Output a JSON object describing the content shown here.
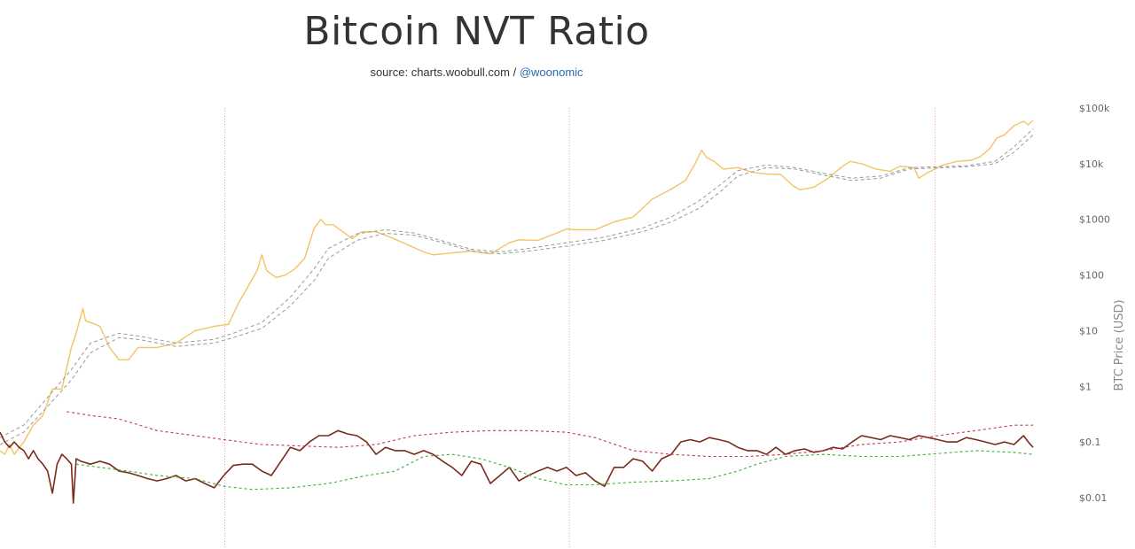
{
  "title": "Bitcoin NVT Ratio",
  "source": {
    "prefix": "source: charts.woobull.com / ",
    "handle": "@woonomic"
  },
  "colors": {
    "price": "#f2c464",
    "price_ma_1": "#999999",
    "price_ma_2": "#999999",
    "nvt": "#7a2a1a",
    "upper_band": "#c7374e",
    "lower_band": "#3cae3c",
    "halving_line": "#e58a8a"
  },
  "chart_data": {
    "type": "line",
    "title": "Bitcoin NVT Ratio",
    "ylabel": "BTC Price (USD)",
    "y_scale": "log",
    "y_ticks": [
      {
        "value": 100000,
        "label": "$100k"
      },
      {
        "value": 10000,
        "label": "$10k"
      },
      {
        "value": 1000,
        "label": "$1000"
      },
      {
        "value": 100,
        "label": "$100"
      },
      {
        "value": 10,
        "label": "$10"
      },
      {
        "value": 1,
        "label": "$1"
      },
      {
        "value": 0.1,
        "label": "$0.1"
      },
      {
        "value": 0.01,
        "label": "$0.01"
      }
    ],
    "ylim": [
      0.005,
      100000
    ],
    "xlim": [
      2010.55,
      2021.4
    ],
    "halvings": [
      2012.91,
      2016.53,
      2020.37
    ],
    "series": [
      {
        "key": "price",
        "x": [
          2010.55,
          2010.6,
          2010.65,
          2010.7,
          2010.8,
          2010.9,
          2011.0,
          2011.1,
          2011.2,
          2011.3,
          2011.35,
          2011.42,
          2011.45,
          2011.5,
          2011.6,
          2011.7,
          2011.8,
          2011.9,
          2012.0,
          2012.2,
          2012.4,
          2012.6,
          2012.8,
          2012.95,
          2013.05,
          2013.15,
          2013.25,
          2013.3,
          2013.35,
          2013.45,
          2013.55,
          2013.65,
          2013.75,
          2013.85,
          2013.92,
          2013.97,
          2014.05,
          2014.15,
          2014.25,
          2014.35,
          2014.5,
          2014.65,
          2014.8,
          2015.0,
          2015.1,
          2015.3,
          2015.5,
          2015.7,
          2015.9,
          2016.0,
          2016.2,
          2016.4,
          2016.5,
          2016.6,
          2016.8,
          2017.0,
          2017.2,
          2017.4,
          2017.6,
          2017.75,
          2017.85,
          2017.92,
          2017.97,
          2018.05,
          2018.15,
          2018.3,
          2018.45,
          2018.6,
          2018.75,
          2018.88,
          2018.95,
          2019.1,
          2019.25,
          2019.4,
          2019.48,
          2019.6,
          2019.75,
          2019.9,
          2020.0,
          2020.15,
          2020.2,
          2020.3,
          2020.45,
          2020.6,
          2020.75,
          2020.85,
          2020.95,
          2021.02,
          2021.1,
          2021.2,
          2021.3,
          2021.35,
          2021.4
        ],
        "values": [
          0.07,
          0.06,
          0.09,
          0.06,
          0.1,
          0.2,
          0.3,
          0.9,
          0.9,
          5,
          9,
          25,
          15,
          14,
          12,
          5,
          3,
          3,
          5,
          5,
          6,
          10,
          12,
          13,
          30,
          60,
          120,
          230,
          120,
          90,
          100,
          130,
          200,
          700,
          1000,
          800,
          800,
          600,
          450,
          600,
          600,
          480,
          370,
          260,
          230,
          250,
          270,
          240,
          380,
          430,
          420,
          570,
          670,
          650,
          650,
          900,
          1100,
          2300,
          3500,
          5000,
          10000,
          17500,
          13000,
          11000,
          8000,
          8500,
          7000,
          6500,
          6400,
          4000,
          3400,
          3800,
          5500,
          9000,
          11000,
          10000,
          8000,
          7300,
          9000,
          8500,
          5500,
          7000,
          9400,
          11000,
          11500,
          13500,
          19000,
          29000,
          33000,
          48000,
          58000,
          50000,
          60000
        ]
      },
      {
        "key": "price_ma_1",
        "x": [
          2010.55,
          2010.8,
          2011.0,
          2011.3,
          2011.5,
          2011.8,
          2012.0,
          2012.4,
          2012.8,
          2013.0,
          2013.3,
          2013.6,
          2013.85,
          2014.0,
          2014.3,
          2014.6,
          2014.9,
          2015.2,
          2015.5,
          2015.8,
          2016.1,
          2016.5,
          2016.9,
          2017.3,
          2017.6,
          2017.9,
          2018.1,
          2018.3,
          2018.6,
          2018.9,
          2019.2,
          2019.5,
          2019.8,
          2020.1,
          2020.4,
          2020.7,
          2021.0,
          2021.2,
          2021.4
        ],
        "values": [
          0.12,
          0.2,
          0.5,
          2,
          6,
          9,
          8,
          6,
          7,
          9,
          14,
          40,
          130,
          300,
          550,
          650,
          570,
          410,
          290,
          260,
          300,
          380,
          480,
          700,
          1100,
          2200,
          4000,
          7500,
          9500,
          8500,
          6700,
          5500,
          6000,
          8500,
          8800,
          9200,
          11000,
          20000,
          42000
        ]
      },
      {
        "key": "price_ma_2",
        "x": [
          2010.55,
          2010.8,
          2011.0,
          2011.3,
          2011.5,
          2011.8,
          2012.0,
          2012.4,
          2012.8,
          2013.0,
          2013.3,
          2013.6,
          2013.85,
          2014.0,
          2014.3,
          2014.6,
          2014.9,
          2015.2,
          2015.5,
          2015.8,
          2016.1,
          2016.5,
          2016.9,
          2017.3,
          2017.6,
          2017.9,
          2018.1,
          2018.3,
          2018.6,
          2018.9,
          2019.2,
          2019.5,
          2019.8,
          2020.1,
          2020.4,
          2020.7,
          2021.0,
          2021.2,
          2021.4
        ],
        "values": [
          0.09,
          0.15,
          0.35,
          1.3,
          4,
          7.5,
          7,
          5.2,
          6,
          7.5,
          11,
          28,
          80,
          200,
          420,
          560,
          520,
          380,
          270,
          240,
          270,
          330,
          420,
          600,
          900,
          1600,
          3000,
          6000,
          8500,
          8000,
          6200,
          5000,
          5500,
          8000,
          8400,
          8800,
          10000,
          16000,
          33000
        ]
      },
      {
        "key": "nvt",
        "x": [
          2010.55,
          2010.6,
          2010.65,
          2010.7,
          2010.75,
          2010.8,
          2010.85,
          2010.9,
          2010.95,
          2011.0,
          2011.05,
          2011.1,
          2011.15,
          2011.2,
          2011.25,
          2011.3,
          2011.32,
          2011.35,
          2011.4,
          2011.5,
          2011.6,
          2011.7,
          2011.8,
          2011.9,
          2012.0,
          2012.1,
          2012.2,
          2012.3,
          2012.4,
          2012.5,
          2012.6,
          2012.7,
          2012.8,
          2012.9,
          2013.0,
          2013.1,
          2013.2,
          2013.3,
          2013.4,
          2013.5,
          2013.6,
          2013.7,
          2013.8,
          2013.9,
          2014.0,
          2014.1,
          2014.2,
          2014.3,
          2014.4,
          2014.5,
          2014.6,
          2014.7,
          2014.8,
          2014.9,
          2015.0,
          2015.1,
          2015.2,
          2015.3,
          2015.4,
          2015.5,
          2015.6,
          2015.7,
          2015.8,
          2015.9,
          2016.0,
          2016.1,
          2016.2,
          2016.3,
          2016.4,
          2016.5,
          2016.6,
          2016.7,
          2016.8,
          2016.9,
          2017.0,
          2017.1,
          2017.2,
          2017.3,
          2017.4,
          2017.5,
          2017.6,
          2017.7,
          2017.8,
          2017.9,
          2018.0,
          2018.1,
          2018.2,
          2018.3,
          2018.4,
          2018.5,
          2018.6,
          2018.7,
          2018.8,
          2018.9,
          2019.0,
          2019.1,
          2019.2,
          2019.3,
          2019.4,
          2019.5,
          2019.6,
          2019.7,
          2019.8,
          2019.9,
          2020.0,
          2020.1,
          2020.2,
          2020.3,
          2020.4,
          2020.5,
          2020.6,
          2020.7,
          2020.8,
          2020.9,
          2021.0,
          2021.1,
          2021.2,
          2021.3,
          2021.35,
          2021.4
        ],
        "values": [
          0.15,
          0.1,
          0.08,
          0.1,
          0.08,
          0.07,
          0.05,
          0.07,
          0.05,
          0.04,
          0.03,
          0.012,
          0.04,
          0.06,
          0.05,
          0.04,
          0.008,
          0.05,
          0.045,
          0.04,
          0.045,
          0.04,
          0.03,
          0.028,
          0.025,
          0.022,
          0.02,
          0.022,
          0.025,
          0.02,
          0.022,
          0.018,
          0.015,
          0.025,
          0.038,
          0.04,
          0.04,
          0.03,
          0.025,
          0.045,
          0.08,
          0.07,
          0.1,
          0.13,
          0.13,
          0.16,
          0.14,
          0.13,
          0.1,
          0.06,
          0.08,
          0.07,
          0.07,
          0.06,
          0.07,
          0.06,
          0.045,
          0.035,
          0.025,
          0.045,
          0.04,
          0.018,
          0.025,
          0.035,
          0.02,
          0.025,
          0.03,
          0.035,
          0.03,
          0.035,
          0.025,
          0.028,
          0.02,
          0.016,
          0.035,
          0.035,
          0.05,
          0.045,
          0.03,
          0.05,
          0.06,
          0.1,
          0.11,
          0.1,
          0.12,
          0.11,
          0.1,
          0.08,
          0.07,
          0.07,
          0.06,
          0.08,
          0.06,
          0.07,
          0.075,
          0.065,
          0.07,
          0.08,
          0.075,
          0.1,
          0.13,
          0.12,
          0.11,
          0.13,
          0.12,
          0.11,
          0.13,
          0.12,
          0.11,
          0.1,
          0.1,
          0.12,
          0.11,
          0.1,
          0.09,
          0.1,
          0.09,
          0.13,
          0.1,
          0.08
        ]
      },
      {
        "key": "upper_band",
        "x": [
          2011.25,
          2011.5,
          2011.8,
          2012.2,
          2012.6,
          2012.9,
          2013.3,
          2013.7,
          2014.1,
          2014.5,
          2014.9,
          2015.3,
          2015.7,
          2016.1,
          2016.5,
          2016.8,
          2017.2,
          2017.6,
          2018.0,
          2018.4,
          2018.8,
          2019.2,
          2019.6,
          2020.0,
          2020.4,
          2020.8,
          2021.2,
          2021.4
        ],
        "values": [
          0.35,
          0.3,
          0.26,
          0.16,
          0.13,
          0.11,
          0.09,
          0.085,
          0.08,
          0.09,
          0.13,
          0.15,
          0.16,
          0.16,
          0.15,
          0.12,
          0.07,
          0.06,
          0.055,
          0.055,
          0.06,
          0.07,
          0.09,
          0.1,
          0.13,
          0.16,
          0.2,
          0.2
        ]
      },
      {
        "key": "lower_band",
        "x": [
          2011.35,
          2011.6,
          2011.9,
          2012.2,
          2012.6,
          2012.9,
          2013.2,
          2013.6,
          2014.0,
          2014.4,
          2014.7,
          2015.0,
          2015.3,
          2015.6,
          2015.9,
          2016.2,
          2016.5,
          2016.8,
          2017.2,
          2017.6,
          2018.0,
          2018.3,
          2018.5,
          2018.8,
          2019.2,
          2019.6,
          2020.0,
          2020.4,
          2020.8,
          2021.2,
          2021.4
        ],
        "values": [
          0.04,
          0.035,
          0.03,
          0.025,
          0.022,
          0.016,
          0.014,
          0.015,
          0.018,
          0.025,
          0.03,
          0.055,
          0.06,
          0.05,
          0.035,
          0.022,
          0.017,
          0.017,
          0.019,
          0.02,
          0.022,
          0.03,
          0.04,
          0.055,
          0.06,
          0.055,
          0.055,
          0.062,
          0.07,
          0.065,
          0.06
        ]
      }
    ]
  }
}
